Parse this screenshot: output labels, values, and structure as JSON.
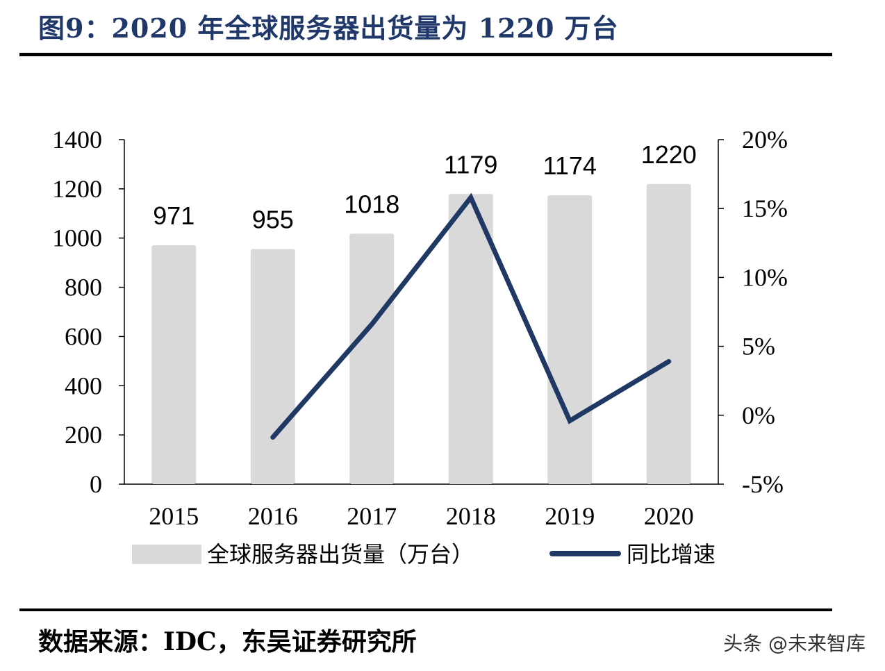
{
  "title": "图9：2020 年全球服务器出货量为 1220 万台",
  "source": "数据来源：IDC，东吴证券研究所",
  "watermark": "头条 @未来智库",
  "chart_data": {
    "type": "bar+line",
    "categories": [
      "2015",
      "2016",
      "2017",
      "2018",
      "2019",
      "2020"
    ],
    "series": [
      {
        "name": "全球服务器出货量（万台）",
        "type": "bar",
        "axis": "left",
        "color": "#d9d9d9",
        "values": [
          971,
          955,
          1018,
          1179,
          1174,
          1220
        ]
      },
      {
        "name": "同比增速",
        "type": "line",
        "axis": "right",
        "color": "#1f3864",
        "values": [
          null,
          -1.6,
          6.6,
          15.8,
          -0.4,
          3.9
        ]
      }
    ],
    "left_axis": {
      "ylim": [
        0,
        1400
      ],
      "ticks": [
        "0",
        "200",
        "400",
        "600",
        "800",
        "1000",
        "1200",
        "1400"
      ]
    },
    "right_axis": {
      "ylim": [
        -5,
        20
      ],
      "ticks": [
        "-5%",
        "0%",
        "5%",
        "10%",
        "15%",
        "20%"
      ]
    },
    "data_labels": [
      "971",
      "955",
      "1018",
      "1179",
      "1174",
      "1220"
    ],
    "legend_position": "bottom",
    "grid": false
  }
}
